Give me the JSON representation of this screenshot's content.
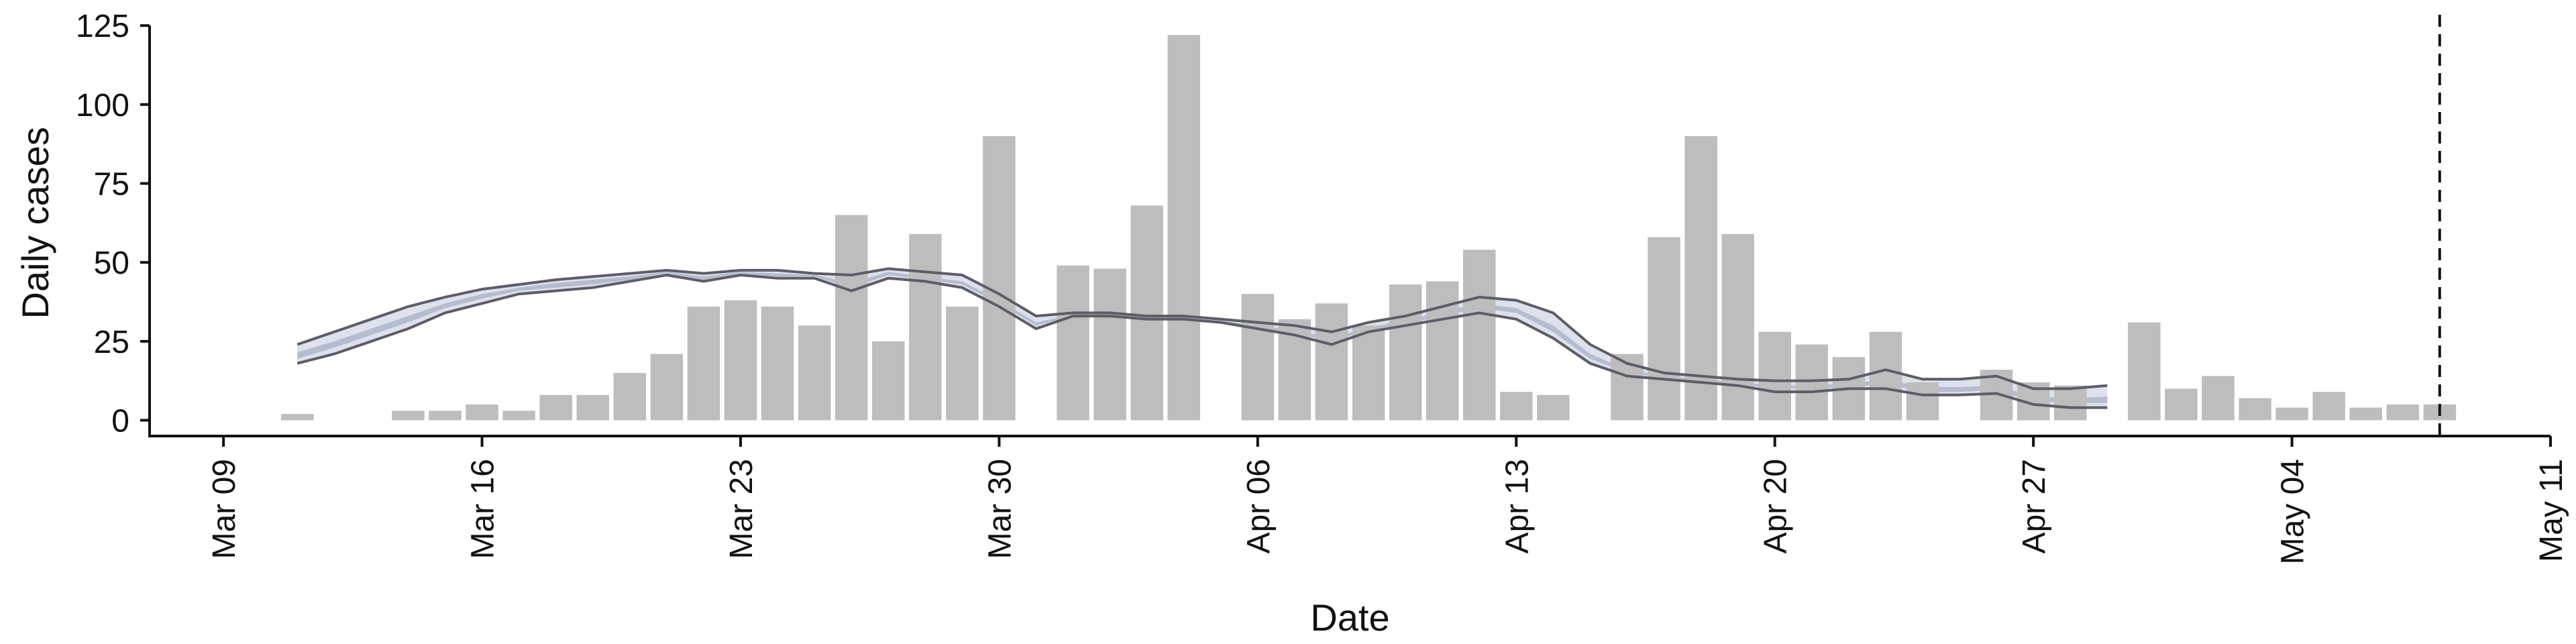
{
  "chart_data": {
    "type": "bar",
    "xlabel": "Date",
    "ylabel": "Daily cases",
    "ylim": [
      -5,
      128
    ],
    "xlim": [
      "2020-03-07",
      "2020-05-11"
    ],
    "x_ticks": [
      "2020-03-09",
      "2020-03-16",
      "2020-03-23",
      "2020-03-30",
      "2020-04-06",
      "2020-04-13",
      "2020-04-20",
      "2020-04-27",
      "2020-05-04",
      "2020-05-11"
    ],
    "x_tick_labels": [
      "Mar 09",
      "Mar 16",
      "Mar 23",
      "Mar 30",
      "Apr 06",
      "Apr 13",
      "Apr 20",
      "Apr 27",
      "May 04",
      "May 11"
    ],
    "y_ticks": [
      0,
      25,
      50,
      75,
      100,
      125
    ],
    "y_tick_labels": [
      "0",
      "25",
      "50",
      "75",
      "100",
      "125"
    ],
    "grid": false,
    "vline": {
      "x": "2020-05-08",
      "style": "dashed"
    },
    "colors": {
      "bars": "#bdbdbd",
      "band_outer": "#dde1ec",
      "band_inner": "#b4bccf",
      "band_lines": "#5d5d66",
      "axis": "#111111"
    },
    "bars": {
      "dates": [
        "2020-03-11",
        "2020-03-14",
        "2020-03-15",
        "2020-03-16",
        "2020-03-17",
        "2020-03-18",
        "2020-03-19",
        "2020-03-20",
        "2020-03-21",
        "2020-03-22",
        "2020-03-23",
        "2020-03-24",
        "2020-03-25",
        "2020-03-26",
        "2020-03-27",
        "2020-03-28",
        "2020-03-29",
        "2020-03-30",
        "2020-04-01",
        "2020-04-02",
        "2020-04-03",
        "2020-04-04",
        "2020-04-06",
        "2020-04-07",
        "2020-04-08",
        "2020-04-09",
        "2020-04-10",
        "2020-04-11",
        "2020-04-12",
        "2020-04-13",
        "2020-04-14",
        "2020-04-16",
        "2020-04-17",
        "2020-04-18",
        "2020-04-19",
        "2020-04-20",
        "2020-04-21",
        "2020-04-22",
        "2020-04-23",
        "2020-04-24",
        "2020-04-26",
        "2020-04-27",
        "2020-04-28",
        "2020-04-30",
        "2020-05-01",
        "2020-05-02",
        "2020-05-03",
        "2020-05-04",
        "2020-05-05",
        "2020-05-06",
        "2020-05-07",
        "2020-05-08"
      ],
      "values": [
        2,
        3,
        3,
        5,
        3,
        8,
        8,
        15,
        21,
        36,
        38,
        36,
        30,
        65,
        25,
        59,
        36,
        90,
        49,
        48,
        68,
        122,
        40,
        32,
        37,
        30,
        43,
        44,
        54,
        9,
        8,
        21,
        58,
        90,
        59,
        28,
        24,
        20,
        28,
        12,
        16,
        12,
        11,
        31,
        10,
        14,
        7,
        4,
        9,
        4,
        5,
        5
      ]
    },
    "band": {
      "dates": [
        "2020-03-11",
        "2020-03-12",
        "2020-03-13",
        "2020-03-14",
        "2020-03-15",
        "2020-03-16",
        "2020-03-17",
        "2020-03-18",
        "2020-03-19",
        "2020-03-20",
        "2020-03-21",
        "2020-03-22",
        "2020-03-23",
        "2020-03-24",
        "2020-03-25",
        "2020-03-26",
        "2020-03-27",
        "2020-03-28",
        "2020-03-29",
        "2020-03-30",
        "2020-03-31",
        "2020-04-01",
        "2020-04-02",
        "2020-04-03",
        "2020-04-04",
        "2020-04-05",
        "2020-04-06",
        "2020-04-07",
        "2020-04-08",
        "2020-04-09",
        "2020-04-10",
        "2020-04-11",
        "2020-04-12",
        "2020-04-13",
        "2020-04-14",
        "2020-04-15",
        "2020-04-16",
        "2020-04-17",
        "2020-04-18",
        "2020-04-19",
        "2020-04-20",
        "2020-04-21",
        "2020-04-22",
        "2020-04-23",
        "2020-04-24",
        "2020-04-25",
        "2020-04-26",
        "2020-04-27",
        "2020-04-28",
        "2020-04-29"
      ],
      "upper": [
        24,
        28,
        32,
        36,
        39,
        41.5,
        43,
        44.5,
        45.5,
        46.5,
        47.5,
        46.5,
        47.5,
        47.5,
        46.5,
        46,
        48,
        47,
        46,
        40,
        33,
        34,
        34,
        33,
        33,
        32,
        31,
        30,
        28,
        31,
        33,
        36,
        39,
        38,
        34,
        24,
        18,
        15,
        14,
        13,
        12.5,
        12.5,
        13,
        16,
        13,
        13,
        14,
        10,
        10,
        11
      ],
      "lower": [
        18,
        21,
        25,
        29,
        34,
        37,
        40,
        41,
        42,
        44,
        46,
        44,
        46,
        45,
        45,
        41,
        45,
        44,
        42,
        36,
        29,
        33,
        33,
        32,
        32,
        31,
        29,
        27,
        24,
        28,
        30,
        32,
        34,
        32,
        26,
        18,
        14,
        13,
        12,
        11,
        9,
        9,
        10,
        10,
        8,
        8,
        8.5,
        5,
        4,
        4
      ],
      "inner_upper": [
        21.5,
        25,
        29,
        33,
        37,
        40,
        42,
        43.5,
        44.5,
        45.5,
        47,
        45.5,
        47,
        46.5,
        46,
        43.5,
        47,
        45.5,
        44,
        38,
        31,
        33.5,
        33.5,
        32.5,
        32.5,
        31.5,
        30,
        28.5,
        26,
        29.5,
        31.5,
        34.5,
        37,
        35.5,
        30,
        21,
        16,
        14,
        13,
        12,
        11,
        11,
        11.5,
        13,
        10.5,
        10.5,
        11,
        7.5,
        7,
        7.5
      ],
      "inner_lower": [
        19.5,
        23,
        27,
        31,
        35.5,
        38.5,
        41,
        42,
        43,
        44.5,
        46.5,
        44.5,
        46.5,
        45.5,
        45.5,
        42,
        46,
        44.5,
        43,
        37,
        30,
        33,
        33,
        32,
        32,
        31,
        29.5,
        27.5,
        25,
        28.5,
        30.5,
        33,
        35.5,
        34,
        28,
        19.5,
        15,
        13.5,
        12.5,
        11.5,
        10,
        10,
        10.5,
        11.5,
        9,
        9,
        9.5,
        6,
        5.5,
        5.5
      ]
    }
  }
}
